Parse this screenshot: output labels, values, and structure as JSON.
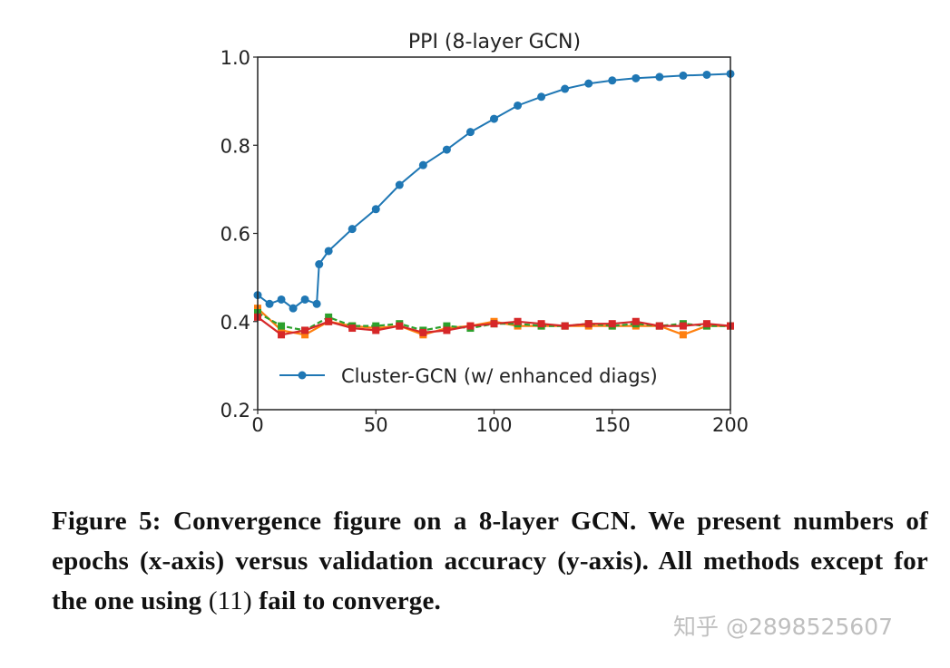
{
  "chart_data": {
    "type": "line",
    "title": "PPI (8-layer GCN)",
    "xlim": [
      0,
      200
    ],
    "ylim": [
      0.2,
      1.0
    ],
    "xticks": [
      "0",
      "50",
      "100",
      "150",
      "200"
    ],
    "yticks": [
      "0.2",
      "0.4",
      "0.6",
      "0.8",
      "1.0"
    ],
    "legend_position": "lower-right",
    "grid": false,
    "series": [
      {
        "name": "Cluster-GCN (w/ enhanced diags)",
        "color": "#1f77b4",
        "marker": "circle",
        "x": [
          0,
          5,
          10,
          15,
          20,
          25,
          26,
          30,
          40,
          50,
          60,
          70,
          80,
          90,
          100,
          110,
          120,
          130,
          140,
          150,
          160,
          170,
          180,
          190,
          200
        ],
        "y": [
          0.46,
          0.44,
          0.45,
          0.43,
          0.45,
          0.44,
          0.53,
          0.56,
          0.61,
          0.655,
          0.71,
          0.755,
          0.79,
          0.83,
          0.86,
          0.89,
          0.91,
          0.928,
          0.94,
          0.947,
          0.952,
          0.955,
          0.958,
          0.96,
          0.962
        ]
      },
      {
        "color": "#ff7f0e",
        "marker": "square",
        "x": [
          0,
          10,
          20,
          30,
          40,
          50,
          60,
          70,
          80,
          90,
          100,
          110,
          120,
          130,
          140,
          150,
          160,
          170,
          180,
          190,
          200
        ],
        "y": [
          0.43,
          0.38,
          0.37,
          0.4,
          0.39,
          0.385,
          0.39,
          0.37,
          0.385,
          0.39,
          0.4,
          0.39,
          0.39,
          0.39,
          0.39,
          0.39,
          0.39,
          0.39,
          0.37,
          0.39,
          0.39
        ]
      },
      {
        "color": "#2ca02c",
        "marker": "square",
        "x": [
          0,
          10,
          20,
          30,
          40,
          50,
          60,
          70,
          80,
          90,
          100,
          110,
          120,
          130,
          140,
          150,
          160,
          170,
          180,
          190,
          200
        ],
        "y": [
          0.42,
          0.39,
          0.38,
          0.41,
          0.39,
          0.39,
          0.395,
          0.38,
          0.39,
          0.385,
          0.395,
          0.395,
          0.39,
          0.39,
          0.395,
          0.39,
          0.395,
          0.39,
          0.395,
          0.39,
          0.39
        ]
      },
      {
        "color": "#d62728",
        "marker": "square",
        "x": [
          0,
          10,
          20,
          30,
          40,
          50,
          60,
          70,
          80,
          90,
          100,
          110,
          120,
          130,
          140,
          150,
          160,
          170,
          180,
          190,
          200
        ],
        "y": [
          0.41,
          0.37,
          0.38,
          0.4,
          0.385,
          0.38,
          0.39,
          0.375,
          0.38,
          0.39,
          0.395,
          0.4,
          0.395,
          0.39,
          0.395,
          0.395,
          0.4,
          0.39,
          0.39,
          0.395,
          0.39
        ]
      }
    ]
  },
  "caption": {
    "text": "Figure 5: Convergence figure on a 8-layer GCN. We present numbers of epochs (x-axis) versus validation accuracy (y-axis). All methods except for the one using ",
    "ref": "(11)",
    "tail": " fail to converge."
  },
  "watermark": "知乎 @2898525607"
}
